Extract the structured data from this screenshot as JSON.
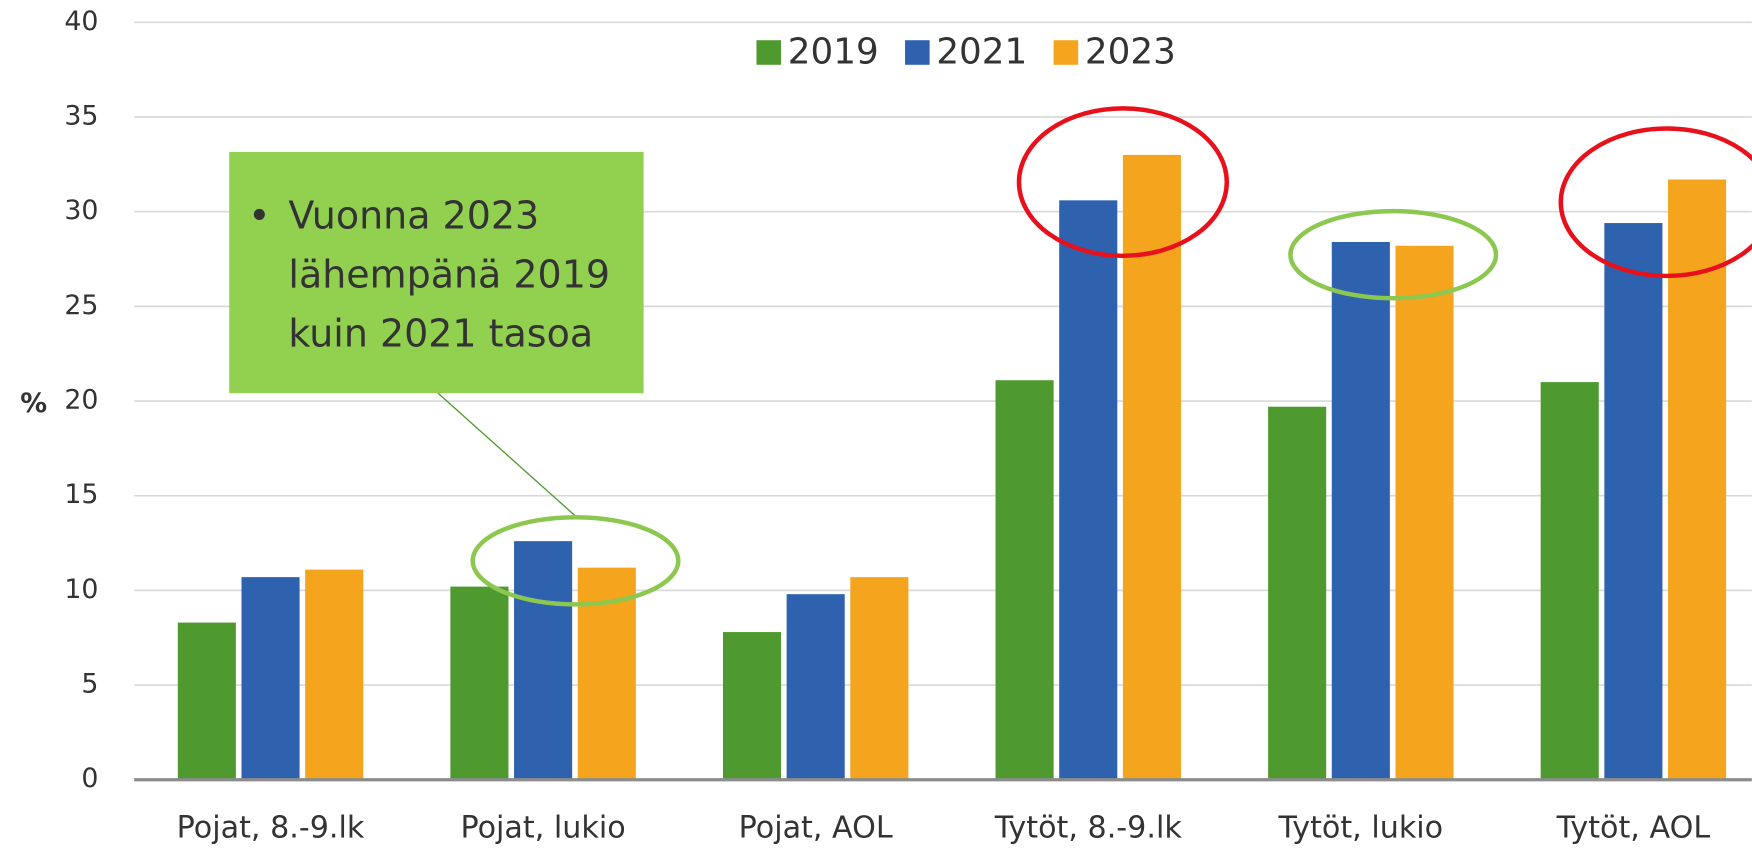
{
  "chart_data": {
    "type": "bar",
    "ylabel": "%",
    "categories": [
      "Pojat, 8.-9.lk",
      "Pojat, lukio",
      "Pojat, AOL",
      "Tytöt, 8.-9.lk",
      "Tytöt, lukio",
      "Tytöt, AOL"
    ],
    "series": [
      {
        "name": "2019",
        "color": "#4f9a2f",
        "values": [
          8.3,
          10.2,
          7.8,
          21.1,
          19.7,
          21.0
        ]
      },
      {
        "name": "2021",
        "color": "#2e62ae",
        "values": [
          10.7,
          12.6,
          9.8,
          30.6,
          28.4,
          29.4
        ]
      },
      {
        "name": "2023",
        "color": "#f5a41d",
        "values": [
          11.1,
          11.2,
          10.7,
          33.0,
          28.2,
          31.7
        ]
      }
    ],
    "ylim": [
      0,
      40
    ],
    "yticks": [
      0,
      5,
      10,
      15,
      20,
      25,
      30,
      35,
      40
    ],
    "grid": true,
    "legend": "top",
    "annotation": [
      "Vuonna 2023",
      "lähempänä 2019",
      "kuin 2021 tasoa"
    ]
  }
}
